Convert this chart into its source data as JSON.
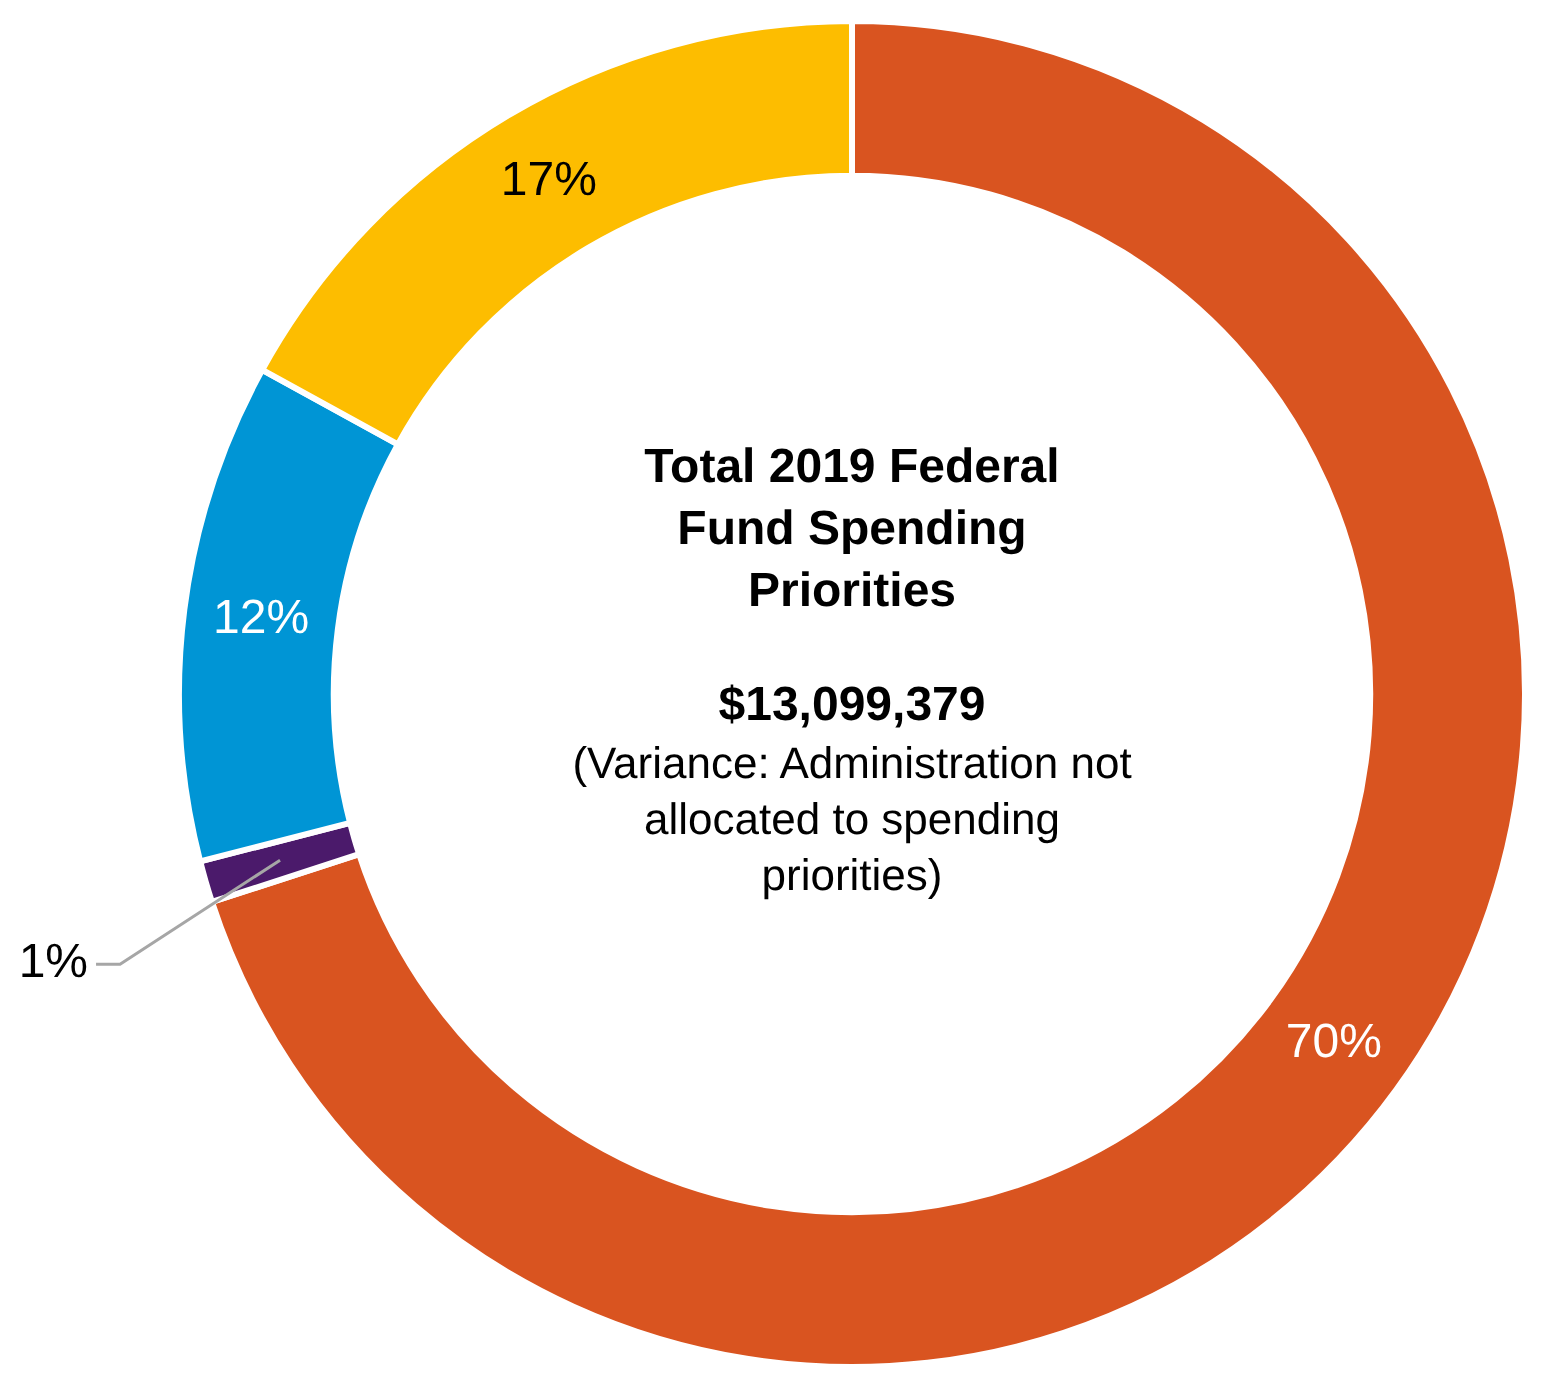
{
  "chart_data": {
    "type": "donut",
    "title": "Total 2019 Federal Fund Spending Priorities",
    "subtitle": "$13,099,379",
    "annotations": [
      "(Variance: Administration not allocated to spending priorities)"
    ],
    "categories": [
      null,
      null,
      null,
      null
    ],
    "values": [
      70,
      1,
      12,
      17
    ],
    "value_labels": [
      "70%",
      "1%",
      "12%",
      "17%"
    ],
    "colors": [
      "#d95420",
      "#4b1a6b",
      "#0095d5",
      "#fdbd00"
    ],
    "legend": false
  }
}
